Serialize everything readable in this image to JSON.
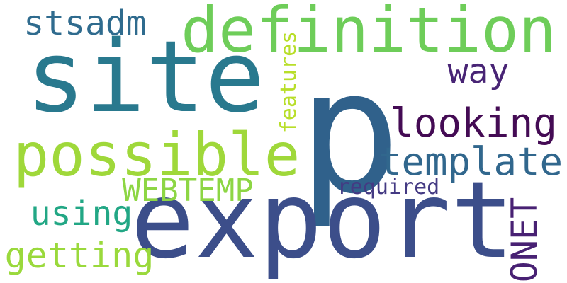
{
  "words": {
    "p": {
      "text": "p",
      "color": "#30618b"
    },
    "export": {
      "text": "export",
      "color": "#3c4e8a"
    },
    "site": {
      "text": "site",
      "color": "#29798e"
    },
    "definition": {
      "text": "definition",
      "color": "#6ecd59"
    },
    "possible": {
      "text": "possible",
      "color": "#9fd83a"
    },
    "template": {
      "text": "template",
      "color": "#31678d"
    },
    "looking": {
      "text": "looking",
      "color": "#440b54"
    },
    "stsadm": {
      "text": "stsadm",
      "color": "#2f6b8e"
    },
    "way": {
      "text": "way",
      "color": "#482475"
    },
    "WEBTEMP": {
      "text": "WEBTEMP",
      "color": "#8dd644"
    },
    "using": {
      "text": "using",
      "color": "#22a785"
    },
    "getting": {
      "text": "getting",
      "color": "#9ad93c"
    },
    "ONET": {
      "text": "ONET",
      "color": "#482173"
    },
    "features": {
      "text": "features",
      "color": "#b8de29"
    },
    "required": {
      "text": "required",
      "color": "#443a83"
    }
  }
}
